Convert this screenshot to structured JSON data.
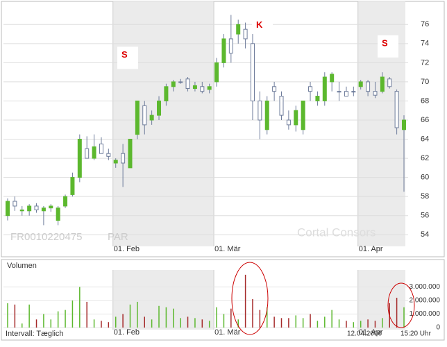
{
  "chart_data": [
    {
      "type": "candlestick",
      "id_label": "FR0010220475",
      "exchange": "PAR",
      "watermark": "Cortal Consors",
      "annotations": [
        "S",
        "K",
        "S"
      ],
      "categories": [
        null,
        null,
        null,
        null,
        null,
        null,
        null,
        null,
        null,
        null,
        null,
        null,
        null,
        null,
        null,
        "01. Feb",
        null,
        null,
        null,
        null,
        null,
        null,
        null,
        null,
        null,
        null,
        null,
        null,
        null,
        "01. Mär",
        null,
        null,
        null,
        null,
        null,
        null,
        null,
        null,
        null,
        null,
        null,
        null,
        null,
        null,
        null,
        null,
        null,
        null,
        null,
        "01. Apr",
        null,
        null,
        null,
        null,
        null,
        null
      ],
      "open": [
        56,
        57.5,
        56.5,
        56.5,
        57,
        56.5,
        56.8,
        55.5,
        57,
        58.2,
        60,
        63,
        62,
        63.5,
        62.5,
        61.5,
        62.5,
        61,
        64.5,
        67.5,
        66,
        66.5,
        68,
        69.5,
        70,
        70.3,
        69.3,
        69.5,
        69.2,
        70,
        72,
        74.5,
        75,
        75.5,
        74,
        68,
        65,
        69.5,
        68.5,
        66,
        65.5,
        65,
        69.5,
        68,
        68,
        70,
        69,
        69,
        69,
        69.5,
        70,
        69,
        69,
        70.3,
        69,
        65
      ],
      "high": [
        57.8,
        58,
        57,
        57.2,
        57.3,
        57,
        57.2,
        57,
        58.2,
        60.5,
        64.5,
        64.3,
        64.5,
        64.2,
        63,
        62,
        63.5,
        64,
        68,
        68,
        67,
        68.5,
        69.8,
        70.2,
        70.3,
        70.5,
        70,
        70,
        69.8,
        72.5,
        75,
        77,
        76.5,
        76.2,
        75,
        69,
        68.5,
        70,
        69,
        67,
        67.5,
        68,
        70,
        69,
        71,
        71,
        70,
        69.5,
        69.5,
        70.2,
        70.2,
        70,
        71,
        70.5,
        69.2,
        66.5
      ],
      "low": [
        55.5,
        56.5,
        56,
        56,
        56.3,
        55,
        56.4,
        55,
        56.8,
        58,
        59.5,
        62,
        61.8,
        62.5,
        61.8,
        61,
        59,
        61,
        64,
        64.5,
        65.5,
        66,
        67.5,
        69,
        69.8,
        69,
        69,
        68.8,
        68.8,
        69.5,
        71.5,
        72,
        74,
        73.5,
        66,
        64,
        64.5,
        68,
        66,
        65,
        64.8,
        64.5,
        68,
        67.5,
        67.5,
        69,
        68,
        68.5,
        68.5,
        69.2,
        68.5,
        68.3,
        68.8,
        69.3,
        64.5,
        58.5
      ],
      "close": [
        57.5,
        57,
        56.6,
        57,
        56.6,
        56.8,
        57,
        56.8,
        58,
        60,
        64,
        62,
        63.2,
        62.5,
        62.2,
        61.8,
        61.5,
        64,
        68,
        65.5,
        66.5,
        68,
        69.5,
        70,
        70,
        69.3,
        69.6,
        69,
        69.5,
        72,
        74.5,
        73,
        76,
        74.5,
        68,
        66,
        68,
        69,
        66.5,
        65.5,
        67,
        68,
        69,
        68.5,
        70.5,
        70.8,
        69,
        68.5,
        69,
        70,
        69,
        68.6,
        70.5,
        69.5,
        65.2,
        66
      ],
      "up_color": "#5cb82e",
      "down_color": "#ffffff",
      "wick_color": "#6d7b9a",
      "ylim": [
        53,
        78.2
      ],
      "yticks": [
        54,
        56,
        58,
        60,
        62,
        64,
        66,
        68,
        70,
        72,
        74,
        76
      ],
      "grid": true
    },
    {
      "type": "bar",
      "title": "Volumen",
      "footer_left": "Intervall: Tæglich",
      "date": "12.04.2006",
      "time": "15:20 Uhr",
      "categories": [
        null,
        null,
        null,
        null,
        null,
        null,
        null,
        null,
        null,
        null,
        null,
        null,
        null,
        null,
        null,
        "01. Feb",
        null,
        null,
        null,
        null,
        null,
        null,
        null,
        null,
        null,
        null,
        null,
        null,
        null,
        "01. Mär",
        null,
        null,
        null,
        null,
        null,
        null,
        null,
        null,
        null,
        null,
        null,
        null,
        null,
        null,
        null,
        null,
        null,
        null,
        null,
        "01. Apr",
        null,
        null,
        null,
        null,
        null,
        null
      ],
      "values": [
        1800000,
        1700000,
        300000,
        1700000,
        600000,
        1000000,
        600000,
        1200000,
        1300000,
        2000000,
        3000000,
        1900000,
        600000,
        500000,
        400000,
        800000,
        1000000,
        1700000,
        1900000,
        800000,
        600000,
        1600000,
        1500000,
        1400000,
        700000,
        800000,
        700000,
        600000,
        500000,
        1500000,
        1000000,
        1400000,
        600000,
        3900000,
        2100000,
        1300000,
        1500000,
        800000,
        700000,
        700000,
        900000,
        700000,
        1000000,
        500000,
        800000,
        1300000,
        600000,
        500000,
        400000,
        500000,
        600000,
        500000,
        700000,
        1800000,
        2200000,
        1500000
      ],
      "up_color": "#5cb82e",
      "down_color": "#a52a2a",
      "ylim": [
        0,
        4100000
      ],
      "yticks": [
        {
          "value": 0,
          "label": "0"
        },
        {
          "value": 1000000,
          "label": "1.000.000"
        },
        {
          "value": 2000000,
          "label": "2.000.000"
        },
        {
          "value": 3000000,
          "label": "3.000.000"
        }
      ]
    }
  ]
}
